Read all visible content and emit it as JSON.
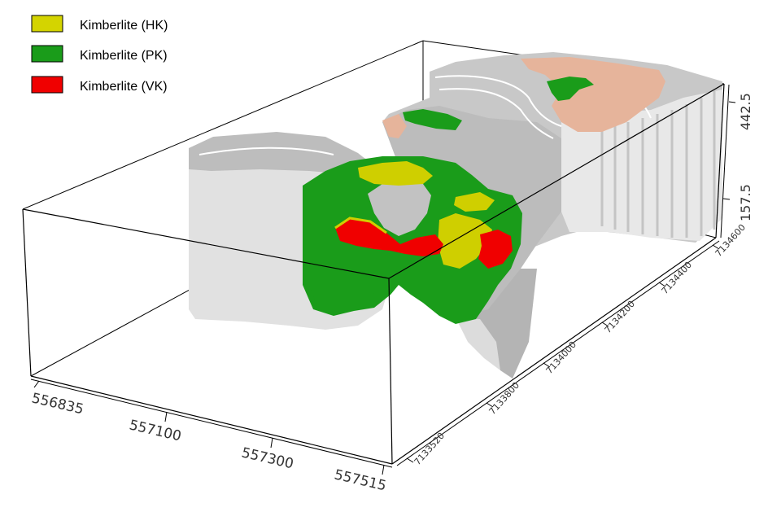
{
  "legend": {
    "items": [
      {
        "label": "Kimberlite (HK)",
        "color": "#d4d400"
      },
      {
        "label": "Kimberlite (PK)",
        "color": "#1a9c1a"
      },
      {
        "label": "Kimberlite (VK)",
        "color": "#f00000"
      }
    ]
  },
  "axes": {
    "x_ticks": [
      "556835",
      "557100",
      "557300",
      "557515"
    ],
    "y_ticks": [
      "7133520",
      "7133800",
      "7134000",
      "7134200",
      "7134400",
      "7134600"
    ],
    "z_ticks": [
      "157.5",
      "442.5"
    ]
  },
  "colors": {
    "box_edge": "#000000",
    "rock_light": "#e0e0e0",
    "rock_mid": "#c4c4c4",
    "rock_dark": "#a8a8a8",
    "overburden": "#e9b59a",
    "hk": "#d4d400",
    "pk": "#1a9c1a",
    "vk": "#f00000"
  }
}
